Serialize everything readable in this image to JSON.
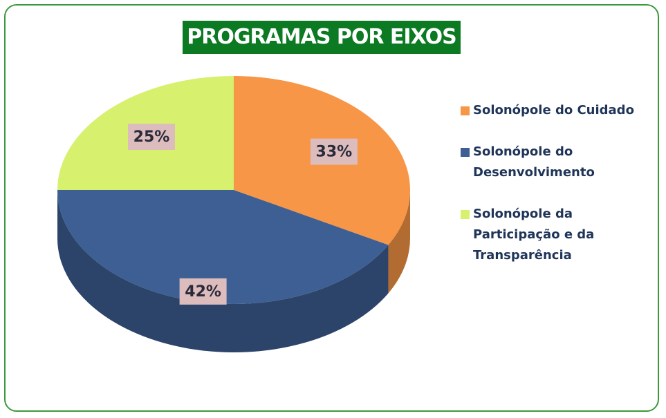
{
  "chart_data": {
    "type": "pie",
    "title": "PROGRAMAS POR EIXOS",
    "categories": [
      "Solonópole do Cuidado",
      "Solonópole do Desenvolvimento",
      "Solonópole da Participação e da Transparência"
    ],
    "values": [
      33,
      42,
      25
    ],
    "value_labels": [
      "33%",
      "42%",
      "25%"
    ],
    "colors": [
      "#f79646",
      "#3d5f93",
      "#d7f06e"
    ],
    "legend": "right"
  }
}
